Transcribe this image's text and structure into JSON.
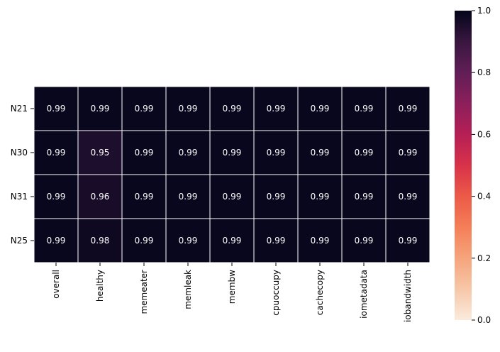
{
  "chart_data": {
    "type": "heatmap",
    "title": "",
    "xlabel": "",
    "ylabel": "",
    "x_categories": [
      "overall",
      "healthy",
      "memeater",
      "memleak",
      "membw",
      "cpuoccupy",
      "cachecopy",
      "iometadata",
      "iobandwidth"
    ],
    "y_categories": [
      "N21",
      "N30",
      "N31",
      "N25"
    ],
    "values": [
      [
        0.99,
        0.99,
        0.99,
        0.99,
        0.99,
        0.99,
        0.99,
        0.99,
        0.99
      ],
      [
        0.99,
        0.95,
        0.99,
        0.99,
        0.99,
        0.99,
        0.99,
        0.99,
        0.99
      ],
      [
        0.99,
        0.96,
        0.99,
        0.99,
        0.99,
        0.99,
        0.99,
        0.99,
        0.99
      ],
      [
        0.99,
        0.98,
        0.99,
        0.99,
        0.99,
        0.99,
        0.99,
        0.99,
        0.99
      ]
    ],
    "value_format": "0.00",
    "colorbar": {
      "min": 0.0,
      "max": 1.0,
      "ticks": [
        0.0,
        0.2,
        0.4,
        0.6,
        0.8,
        1.0
      ],
      "tick_labels": [
        "0.0",
        "0.2",
        "0.4",
        "0.6",
        "0.8",
        "1.0"
      ],
      "colormap": "rocket_r",
      "position": "right"
    },
    "cell_gridlines": "white",
    "grid": false
  }
}
